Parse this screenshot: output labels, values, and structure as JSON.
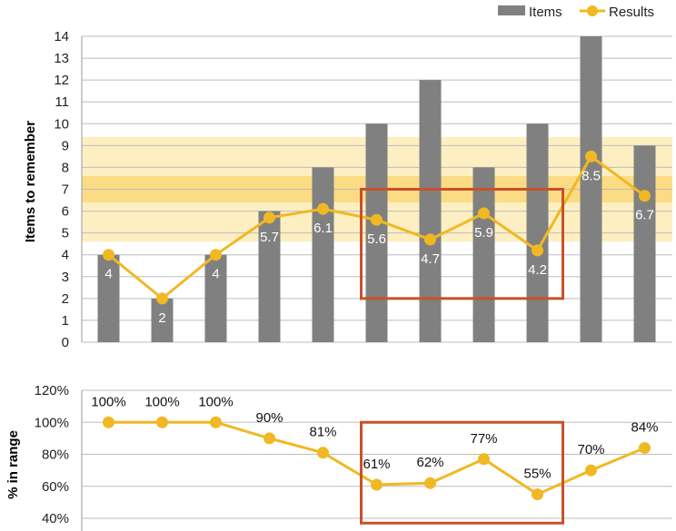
{
  "chart_data": [
    {
      "type": "bar",
      "ylabel": "Items to remember",
      "ylim": [
        0,
        14
      ],
      "yticks": [
        "0",
        "1",
        "2",
        "3",
        "4",
        "5",
        "6",
        "7",
        "8",
        "9",
        "10",
        "11",
        "12",
        "13",
        "14"
      ],
      "legend": {
        "placement": "top-right",
        "entries": [
          "Items",
          "Results"
        ]
      },
      "grid": true,
      "series": [
        {
          "name": "Items",
          "kind": "bar",
          "color": "#808080",
          "values": [
            4,
            2,
            4,
            6,
            8,
            10,
            12,
            8,
            10,
            14,
            9
          ]
        },
        {
          "name": "Results",
          "kind": "line",
          "color": "#F0B823",
          "values": [
            4,
            2,
            4,
            5.7,
            6.1,
            5.6,
            4.7,
            5.9,
            4.2,
            8.5,
            6.7
          ],
          "data_labels": [
            "4",
            "2",
            "4",
            "5.7",
            "6.1",
            "5.6",
            "4.7",
            "5.9",
            "4.2",
            "8.5",
            "6.7"
          ]
        }
      ],
      "bands": [
        {
          "from": 4.6,
          "to": 9.4,
          "color": "#FDEFC2"
        },
        {
          "from": 6.4,
          "to": 7.6,
          "color": "#FBDB84"
        }
      ],
      "highlight": {
        "from_index": 5,
        "to_index": 8,
        "y_from": 2.0,
        "y_to": 7.0,
        "color": "#C9512A"
      }
    },
    {
      "type": "line",
      "ylabel": "% in range",
      "ylim": [
        40,
        120
      ],
      "yticks": [
        "40%",
        "60%",
        "80%",
        "100%",
        "120%"
      ],
      "series": [
        {
          "name": "Results",
          "color": "#F0B823",
          "values": [
            100,
            100,
            100,
            90,
            81,
            61,
            62,
            77,
            55,
            70,
            84
          ],
          "data_labels": [
            "100%",
            "100%",
            "100%",
            "90%",
            "81%",
            "61%",
            "62%",
            "77%",
            "55%",
            "70%",
            "84%"
          ]
        }
      ],
      "highlight": {
        "from_index": 5,
        "to_index": 8,
        "y_from": 37,
        "y_to": 100,
        "color": "#C9512A"
      }
    }
  ]
}
